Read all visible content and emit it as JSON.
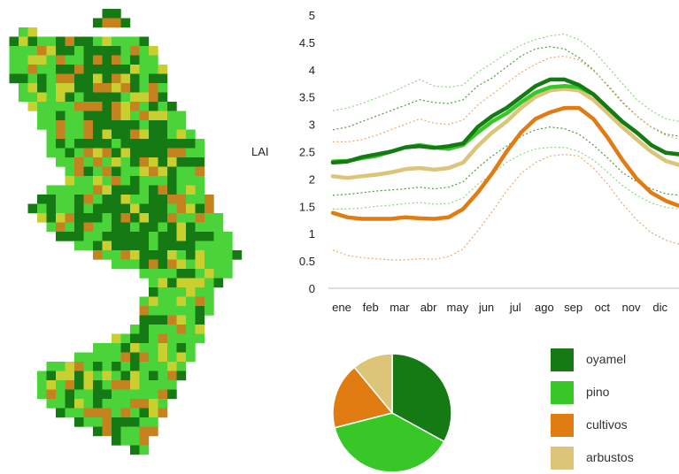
{
  "colors": {
    "oyamel": "#167a14",
    "pino": "#37c828",
    "cultivos": "#e07c12",
    "arbustos": "#dcc479",
    "map_light_green": "#4ad43a",
    "map_yellow": "#c9cf2e",
    "map_brown": "#c58320"
  },
  "chart_data": [
    {
      "type": "line",
      "title": "",
      "xlabel": "",
      "ylabel": "LAI",
      "ylim": [
        0,
        5
      ],
      "yticks": [
        "0",
        "0.5",
        "1",
        "1.5",
        "2",
        "2.5",
        "3",
        "3.5",
        "4",
        "4.5",
        "5"
      ],
      "categories": [
        "ene",
        "feb",
        "mar",
        "abr",
        "may",
        "jun",
        "jul",
        "ago",
        "sep",
        "oct",
        "nov",
        "dic"
      ],
      "x": [
        1,
        1.5,
        2,
        2.5,
        3,
        3.5,
        4,
        4.5,
        5,
        5.5,
        6,
        6.5,
        7,
        7.5,
        8,
        8.5,
        9,
        9.5,
        10,
        10.5,
        11,
        11.5,
        12,
        12.5,
        13
      ],
      "series": [
        {
          "name": "oyamel",
          "color": "#167a14",
          "values": [
            2.3,
            2.32,
            2.4,
            2.45,
            2.5,
            2.58,
            2.6,
            2.57,
            2.6,
            2.65,
            2.95,
            3.15,
            3.3,
            3.5,
            3.7,
            3.82,
            3.82,
            3.72,
            3.55,
            3.3,
            3.05,
            2.85,
            2.62,
            2.48,
            2.45
          ]
        },
        {
          "name": "pino",
          "color": "#37c828",
          "values": [
            2.32,
            2.33,
            2.38,
            2.42,
            2.5,
            2.58,
            2.62,
            2.58,
            2.55,
            2.62,
            2.85,
            3.05,
            3.2,
            3.4,
            3.58,
            3.68,
            3.7,
            3.68,
            3.55,
            3.3,
            3.05,
            2.85,
            2.62,
            2.48,
            2.45
          ]
        },
        {
          "name": "cultivos",
          "color": "#e07c12",
          "values": [
            1.38,
            1.3,
            1.27,
            1.27,
            1.27,
            1.3,
            1.28,
            1.27,
            1.3,
            1.45,
            1.75,
            2.1,
            2.5,
            2.85,
            3.1,
            3.22,
            3.3,
            3.3,
            3.1,
            2.75,
            2.35,
            2.0,
            1.75,
            1.6,
            1.5
          ]
        },
        {
          "name": "arbustos",
          "color": "#dcc479",
          "values": [
            2.05,
            2.02,
            2.05,
            2.08,
            2.12,
            2.18,
            2.2,
            2.17,
            2.2,
            2.3,
            2.6,
            2.85,
            3.05,
            3.3,
            3.5,
            3.62,
            3.65,
            3.62,
            3.45,
            3.2,
            2.95,
            2.72,
            2.5,
            2.33,
            2.25
          ]
        }
      ],
      "bands": [
        {
          "color": "#4e9a3e",
          "values": [
            2.9,
            2.95,
            3.05,
            3.15,
            3.25,
            3.35,
            3.45,
            3.4,
            3.38,
            3.45,
            3.7,
            3.85,
            4.05,
            4.25,
            4.38,
            4.42,
            4.38,
            4.22,
            4.0,
            3.7,
            3.4,
            3.15,
            2.95,
            2.82,
            2.78
          ]
        },
        {
          "color": "#4e9a3e",
          "values": [
            1.7,
            1.72,
            1.75,
            1.78,
            1.8,
            1.82,
            1.85,
            1.82,
            1.85,
            1.95,
            2.2,
            2.42,
            2.6,
            2.78,
            2.9,
            2.95,
            2.92,
            2.82,
            2.62,
            2.38,
            2.12,
            1.95,
            1.82,
            1.73,
            1.7
          ]
        },
        {
          "color": "#8fd77f",
          "values": [
            3.25,
            3.3,
            3.38,
            3.48,
            3.58,
            3.7,
            3.82,
            3.7,
            3.68,
            3.72,
            3.95,
            4.12,
            4.3,
            4.45,
            4.55,
            4.62,
            4.65,
            4.55,
            4.35,
            4.05,
            3.75,
            3.45,
            3.25,
            3.1,
            3.05
          ]
        },
        {
          "color": "#8fd77f",
          "values": [
            1.45,
            1.45,
            1.47,
            1.5,
            1.52,
            1.55,
            1.57,
            1.54,
            1.55,
            1.65,
            1.9,
            2.1,
            2.3,
            2.45,
            2.55,
            2.58,
            2.58,
            2.5,
            2.35,
            2.12,
            1.88,
            1.7,
            1.56,
            1.48,
            1.45
          ]
        },
        {
          "color": "#e7ab73",
          "values": [
            2.68,
            2.68,
            2.72,
            2.8,
            2.9,
            3.0,
            3.1,
            3.02,
            3.0,
            3.08,
            3.35,
            3.55,
            3.75,
            3.95,
            4.1,
            4.22,
            4.25,
            4.18,
            3.98,
            3.72,
            3.42,
            3.15,
            2.95,
            2.8,
            2.72
          ]
        },
        {
          "color": "#e7ab73",
          "values": [
            0.7,
            0.6,
            0.56,
            0.54,
            0.52,
            0.52,
            0.54,
            0.53,
            0.58,
            0.72,
            1.05,
            1.4,
            1.78,
            2.1,
            2.3,
            2.42,
            2.45,
            2.42,
            2.2,
            1.9,
            1.55,
            1.25,
            1.02,
            0.88,
            0.8
          ]
        }
      ]
    },
    {
      "type": "pie",
      "slices": [
        {
          "name": "oyamel",
          "value": 33,
          "color": "#167a14"
        },
        {
          "name": "pino",
          "value": 38,
          "color": "#37c828"
        },
        {
          "name": "cultivos",
          "value": 18,
          "color": "#e07c12"
        },
        {
          "name": "arbustos",
          "value": 11,
          "color": "#dcc479"
        }
      ]
    }
  ],
  "legend": [
    {
      "label": "oyamel",
      "color": "#167a14"
    },
    {
      "label": "pino",
      "color": "#37c828"
    },
    {
      "label": "cultivos",
      "color": "#e07c12"
    },
    {
      "label": "arbustos",
      "color": "#dcc479"
    }
  ]
}
